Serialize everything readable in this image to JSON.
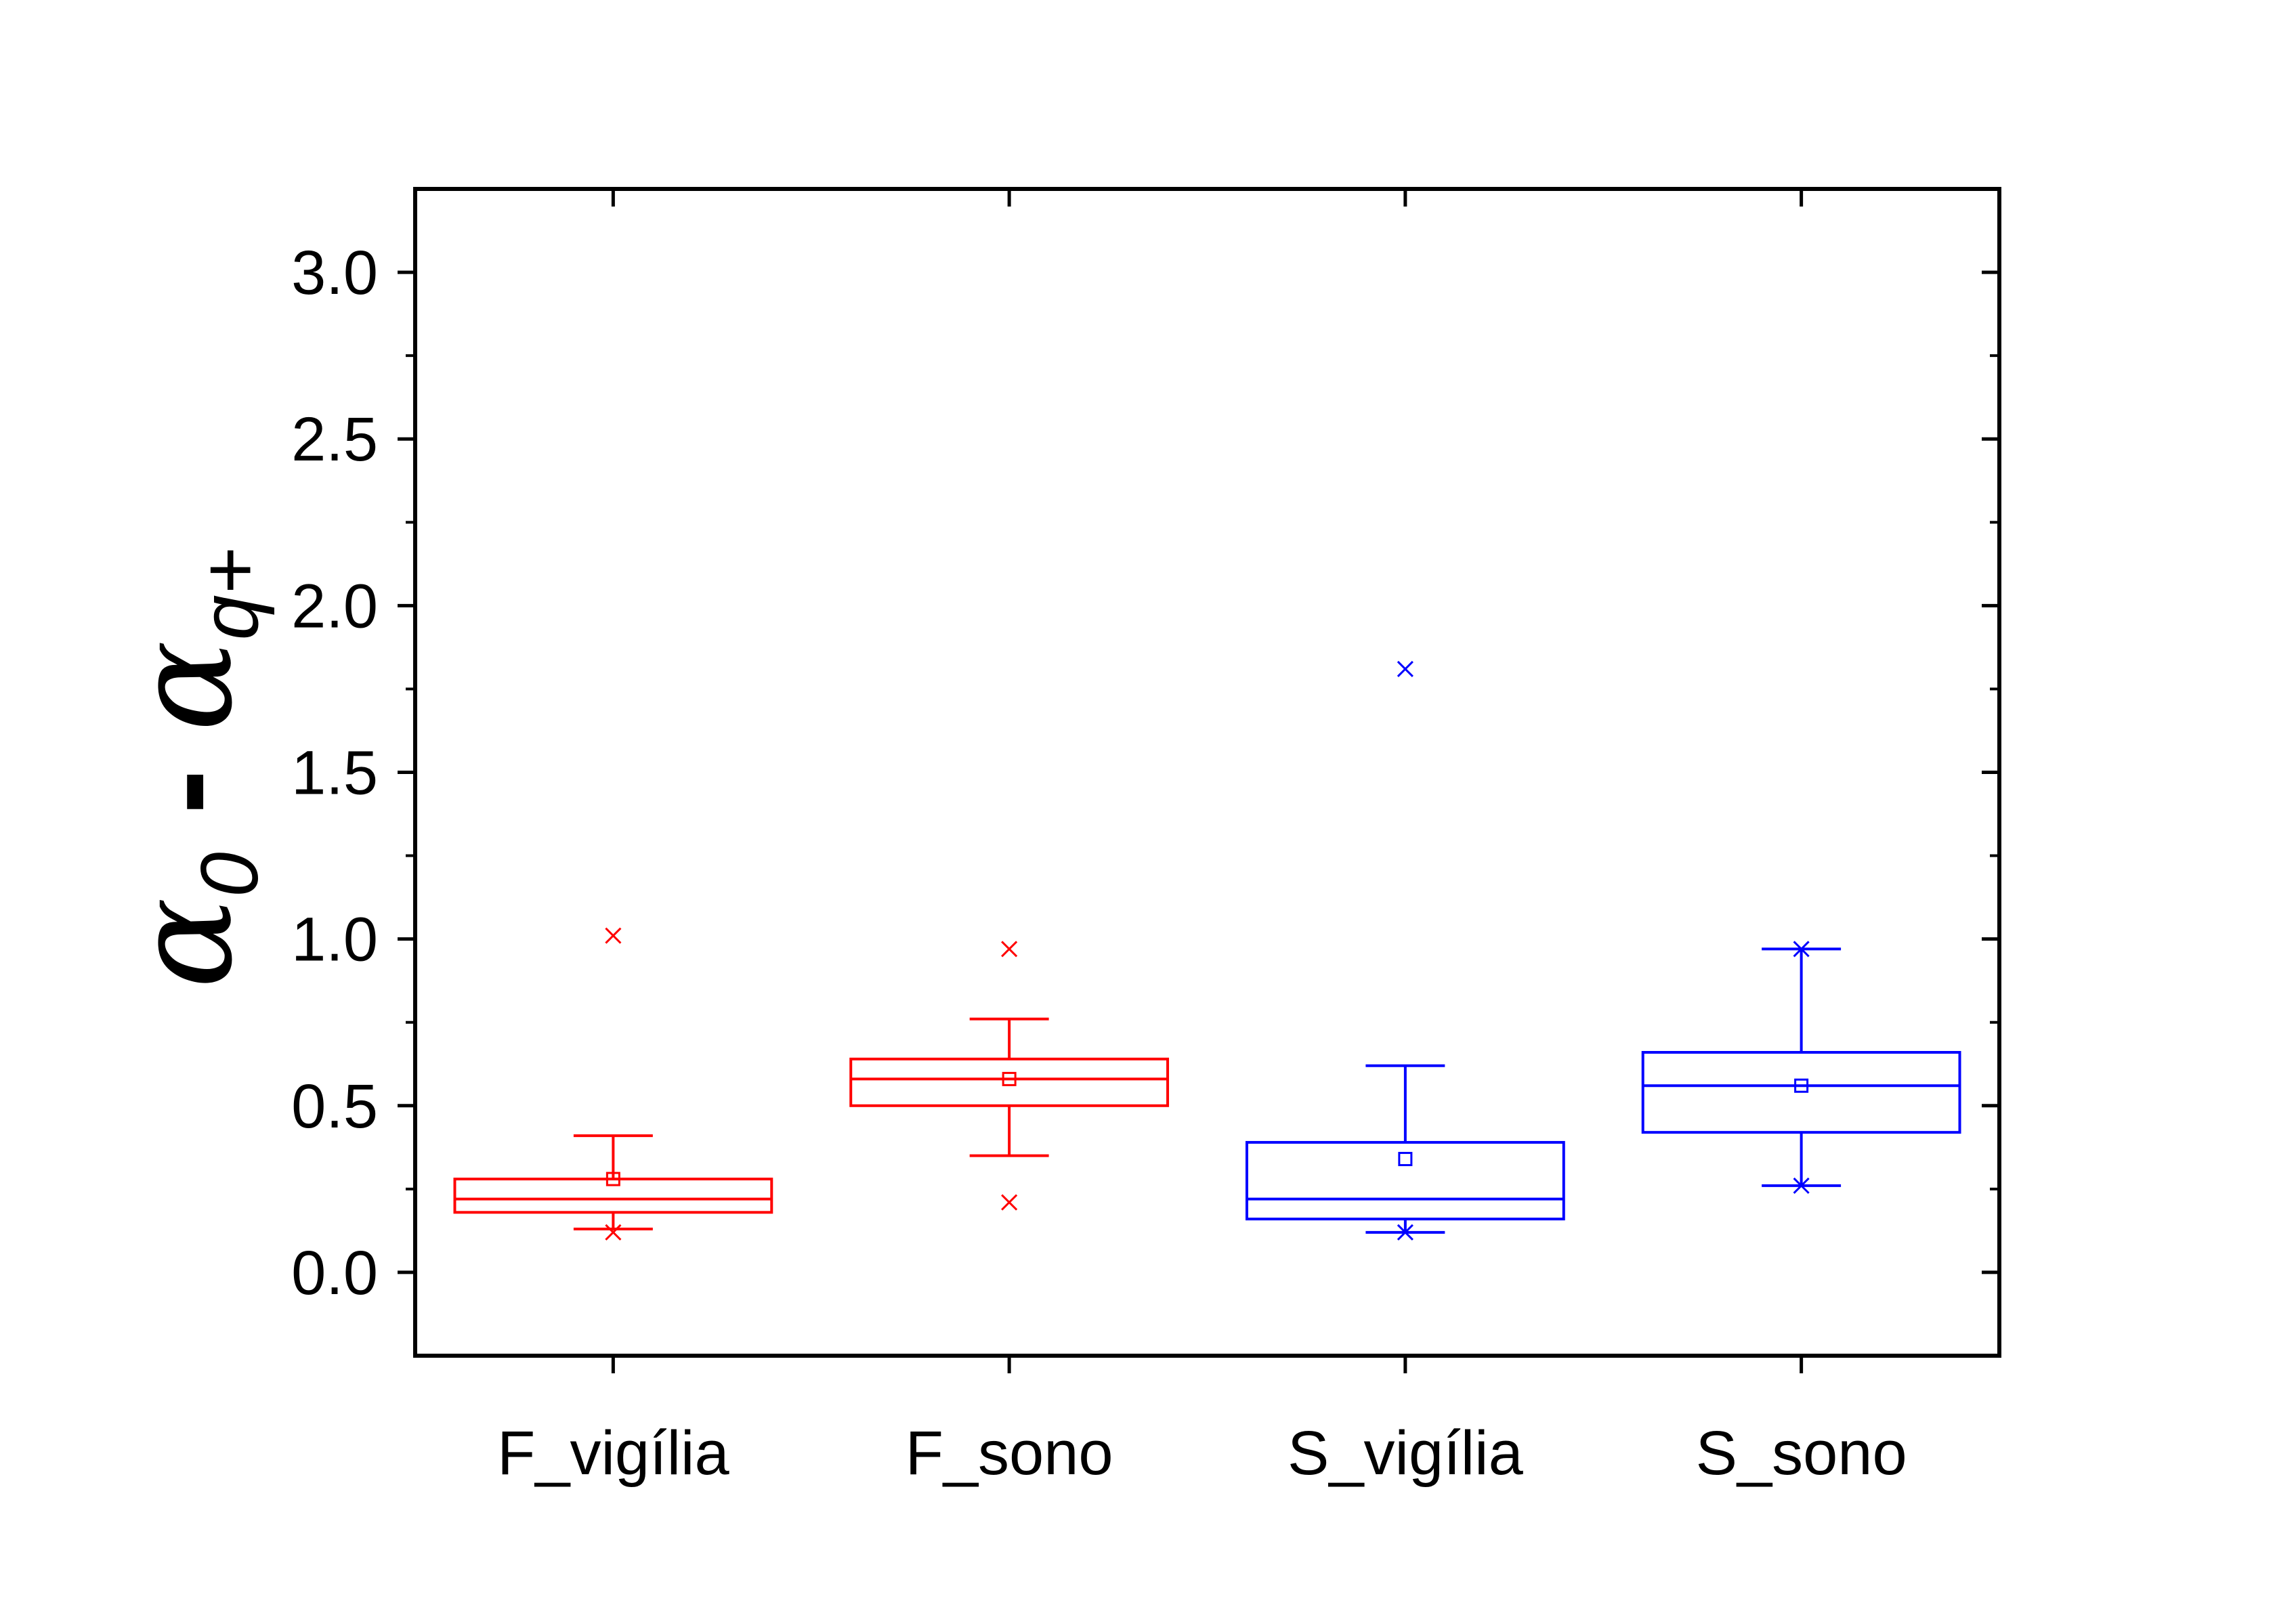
{
  "chart_data": {
    "type": "box",
    "ylabel": {
      "symbol": "α",
      "sub_left": "0",
      "operator": " - ",
      "sub_right": "q+"
    },
    "xlabel": "",
    "ylim": [
      -0.25,
      3.25
    ],
    "yticks": [
      "0.0",
      "0.5",
      "1.0",
      "1.5",
      "2.0",
      "2.5",
      "3.0"
    ],
    "ytick_values": [
      0.0,
      0.5,
      1.0,
      1.5,
      2.0,
      2.5,
      3.0
    ],
    "categories": [
      "F_vigília",
      "F_sono",
      "S_vigília",
      "S_sono"
    ],
    "series": [
      {
        "category": "F_vigília",
        "color": "#ff0000",
        "q1": 0.18,
        "median": 0.22,
        "q3": 0.28,
        "mean": 0.28,
        "whisker_low": 0.13,
        "whisker_high": 0.41,
        "min": 0.12,
        "max": 1.01,
        "outliers": []
      },
      {
        "category": "F_sono",
        "color": "#ff0000",
        "q1": 0.5,
        "median": 0.58,
        "q3": 0.64,
        "mean": 0.58,
        "whisker_low": 0.35,
        "whisker_high": 0.76,
        "min": 0.21,
        "max": 0.97,
        "outliers": []
      },
      {
        "category": "S_vigília",
        "color": "#0000ff",
        "q1": 0.16,
        "median": 0.22,
        "q3": 0.39,
        "mean": 0.34,
        "whisker_low": 0.12,
        "whisker_high": 0.62,
        "min": 0.12,
        "max": 1.81,
        "outliers": []
      },
      {
        "category": "S_sono",
        "color": "#0000ff",
        "q1": 0.42,
        "median": 0.56,
        "q3": 0.66,
        "mean": 0.56,
        "whisker_low": 0.26,
        "whisker_high": 0.97,
        "min": 0.26,
        "max": 0.97,
        "outliers": []
      }
    ],
    "grid": false,
    "legend": "none"
  }
}
